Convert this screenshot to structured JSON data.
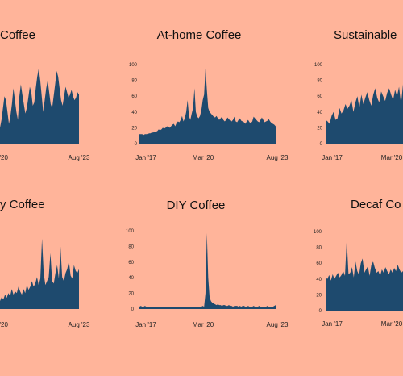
{
  "colors": {
    "background": "#FFB49A",
    "area": "#1E4A6E",
    "text": "#111111"
  },
  "chart_data": [
    {
      "type": "area",
      "title": "Coffee",
      "ylim": [
        0,
        100
      ],
      "yticks": [],
      "xticks": [
        "ar '20",
        "Aug '23"
      ],
      "values": [
        20,
        30,
        45,
        60,
        55,
        40,
        25,
        35,
        50,
        70,
        55,
        40,
        30,
        60,
        75,
        62,
        50,
        38,
        45,
        58,
        72,
        65,
        48,
        52,
        70,
        85,
        95,
        80,
        60,
        40,
        55,
        70,
        80,
        65,
        50,
        45,
        60,
        75,
        92,
        85,
        70,
        55,
        48,
        60,
        72,
        65,
        58,
        62,
        68,
        60,
        55,
        58,
        65,
        62
      ]
    },
    {
      "type": "area",
      "title": "At-home Coffee",
      "ylim": [
        0,
        100
      ],
      "yticks": [
        "100",
        "80",
        "60",
        "40",
        "20",
        "0"
      ],
      "xticks": [
        "Jan '17",
        "Mar '20",
        "Aug '23"
      ],
      "values": [
        12,
        12,
        12,
        11,
        12,
        12,
        12,
        13,
        13,
        14,
        14,
        15,
        15,
        16,
        18,
        17,
        18,
        20,
        19,
        20,
        22,
        21,
        20,
        22,
        24,
        25,
        22,
        26,
        28,
        27,
        30,
        35,
        28,
        32,
        40,
        55,
        35,
        30,
        38,
        45,
        70,
        40,
        34,
        32,
        35,
        42,
        55,
        62,
        95,
        68,
        45,
        40,
        38,
        36,
        34,
        33,
        35,
        32,
        30,
        32,
        34,
        30,
        28,
        30,
        33,
        31,
        29,
        28,
        30,
        34,
        28,
        27,
        30,
        32,
        29,
        28,
        27,
        25,
        28,
        30,
        27,
        26,
        28,
        34,
        32,
        30,
        28,
        27,
        30,
        33,
        30,
        27,
        28,
        29,
        31,
        28,
        26,
        25,
        24,
        22
      ]
    },
    {
      "type": "area",
      "title": "Sustainable",
      "ylim": [
        0,
        100
      ],
      "yticks": [
        "100",
        "80",
        "60",
        "40",
        "20",
        "0"
      ],
      "xticks": [
        "Jan '17",
        "Mar '20"
      ],
      "values": [
        30,
        28,
        25,
        35,
        40,
        30,
        32,
        45,
        38,
        42,
        50,
        44,
        48,
        55,
        40,
        52,
        60,
        45,
        62,
        50,
        58,
        65,
        55,
        48,
        62,
        70,
        58,
        52,
        66,
        60,
        54,
        64,
        70,
        62,
        55,
        68,
        60,
        72,
        50,
        75
      ]
    },
    {
      "type": "area",
      "title": "y Coffee",
      "ylim": [
        0,
        100
      ],
      "yticks": [],
      "xticks": [
        "ar '20",
        "Aug '23"
      ],
      "values": [
        10,
        15,
        12,
        18,
        14,
        20,
        16,
        25,
        18,
        22,
        20,
        28,
        22,
        18,
        25,
        20,
        30,
        24,
        28,
        35,
        28,
        32,
        40,
        30,
        38,
        88,
        45,
        30,
        35,
        40,
        70,
        35,
        32,
        45,
        55,
        38,
        78,
        40,
        35,
        45,
        50,
        60,
        42,
        38,
        55,
        48,
        45,
        50
      ]
    },
    {
      "type": "area",
      "title": "DIY Coffee",
      "ylim": [
        0,
        100
      ],
      "yticks": [
        "100",
        "80",
        "60",
        "40",
        "20",
        "0"
      ],
      "xticks": [
        "Jan '17",
        "Mar '20",
        "Aug '23"
      ],
      "values": [
        3,
        4,
        3,
        3,
        4,
        3,
        3,
        3,
        2,
        3,
        3,
        3,
        3,
        2,
        3,
        3,
        3,
        2,
        3,
        3,
        3,
        3,
        2,
        3,
        3,
        3,
        3,
        2,
        3,
        3,
        3,
        3,
        3,
        3,
        3,
        3,
        3,
        3,
        3,
        3,
        3,
        3,
        3,
        3,
        3,
        3,
        4,
        3,
        20,
        97,
        40,
        15,
        10,
        8,
        7,
        6,
        5,
        6,
        5,
        5,
        4,
        5,
        5,
        4,
        4,
        5,
        4,
        4,
        3,
        4,
        4,
        4,
        3,
        4,
        3,
        4,
        4,
        3,
        3,
        4,
        3,
        3,
        3,
        4,
        3,
        3,
        3,
        4,
        3,
        3,
        3,
        3,
        3,
        4,
        3,
        3,
        3,
        3,
        4,
        5
      ]
    },
    {
      "type": "area",
      "title": "Decaf Co",
      "ylim": [
        0,
        100
      ],
      "yticks": [
        "100",
        "80",
        "60",
        "40",
        "20",
        "0"
      ],
      "xticks": [
        "Jan '17",
        "Mar '20"
      ],
      "values": [
        42,
        40,
        45,
        38,
        46,
        40,
        44,
        48,
        42,
        45,
        50,
        44,
        90,
        46,
        48,
        55,
        42,
        62,
        50,
        45,
        60,
        66,
        48,
        52,
        56,
        44,
        58,
        62,
        54,
        48,
        50,
        44,
        52,
        48,
        55,
        50,
        46,
        52,
        48,
        54,
        50,
        58,
        52,
        48,
        50
      ]
    }
  ]
}
